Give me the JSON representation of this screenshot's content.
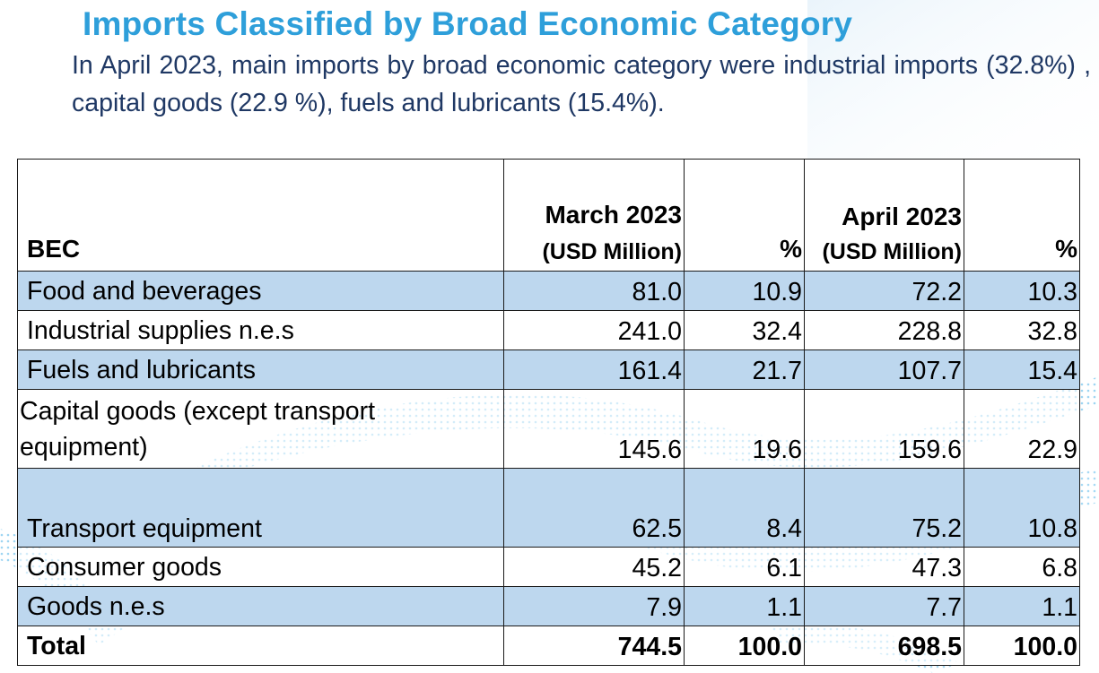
{
  "title": "Imports Classified by Broad Economic Category",
  "intro": "In April 2023, main imports by broad economic category were industrial imports (32.8%) , capital goods (22.9 %), fuels and lubricants (15.4%).",
  "table": {
    "headers": {
      "bec": "BEC",
      "march_main": "March 2023",
      "march_sub": "(USD Million)",
      "march_pct": "%",
      "april_main": "April 2023",
      "april_sub": "(USD Million)",
      "april_pct": "%"
    },
    "rows": [
      {
        "name": "Food and beverages",
        "mar": "81.0",
        "mar_pct": "10.9",
        "apr": "72.2",
        "apr_pct": "10.3"
      },
      {
        "name": "Industrial supplies n.e.s",
        "mar": "241.0",
        "mar_pct": "32.4",
        "apr": "228.8",
        "apr_pct": "32.8"
      },
      {
        "name": "Fuels and lubricants",
        "mar": "161.4",
        "mar_pct": "21.7",
        "apr": "107.7",
        "apr_pct": "15.4"
      },
      {
        "name": "Capital goods (except transport equipment)",
        "mar": "145.6",
        "mar_pct": "19.6",
        "apr": "159.6",
        "apr_pct": "22.9"
      },
      {
        "name": "Transport equipment",
        "mar": "62.5",
        "mar_pct": "8.4",
        "apr": "75.2",
        "apr_pct": "10.8"
      },
      {
        "name": "Consumer goods",
        "mar": "45.2",
        "mar_pct": "6.1",
        "apr": "47.3",
        "apr_pct": "6.8"
      },
      {
        "name": "Goods n.e.s",
        "mar": "7.9",
        "mar_pct": "1.1",
        "apr": "7.7",
        "apr_pct": "1.1"
      }
    ],
    "total": {
      "name": "Total",
      "mar": "744.5",
      "mar_pct": "100.0",
      "apr": "698.5",
      "apr_pct": "100.0"
    }
  },
  "colors": {
    "title": "#2e9fda",
    "intro": "#1f3864",
    "row_shade": "#bdd7ee",
    "deco": "#4fb3e8"
  }
}
